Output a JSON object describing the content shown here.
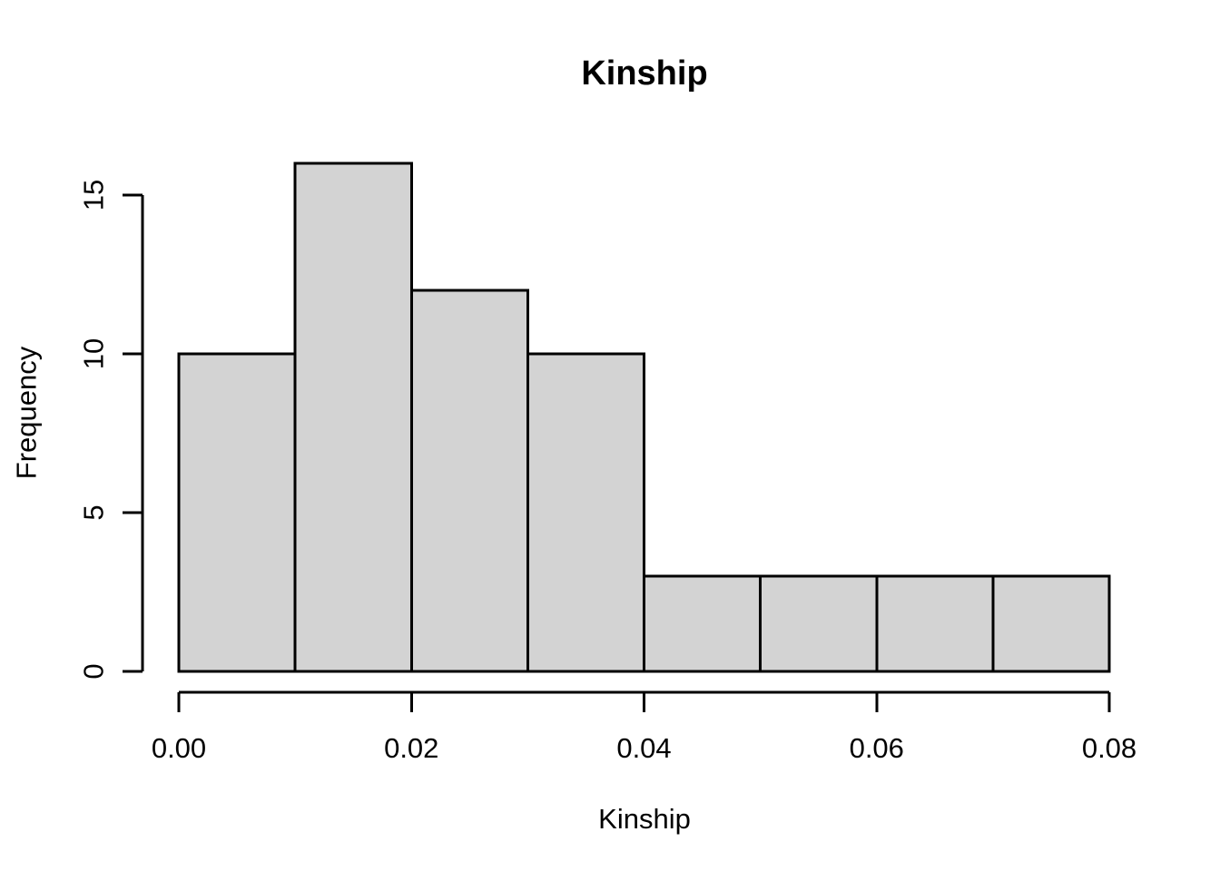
{
  "chart_data": {
    "type": "bar",
    "subtype": "histogram",
    "title": "Kinship",
    "xlabel": "Kinship",
    "ylabel": "Frequency",
    "bin_edges": [
      0.0,
      0.01,
      0.02,
      0.03,
      0.04,
      0.05,
      0.06,
      0.07,
      0.08
    ],
    "counts": [
      10,
      16,
      12,
      10,
      3,
      3,
      3,
      3
    ],
    "xlim": [
      0.0,
      0.08
    ],
    "ylim": [
      0,
      16
    ],
    "x_tick_values": [
      0.0,
      0.02,
      0.04,
      0.06,
      0.08
    ],
    "x_tick_labels": [
      "0.00",
      "0.02",
      "0.04",
      "0.06",
      "0.08"
    ],
    "y_tick_values": [
      0,
      5,
      10,
      15
    ],
    "y_tick_labels": [
      "0",
      "5",
      "10",
      "15"
    ],
    "grid": false,
    "legend_position": "none",
    "bar_fill_color": "#d3d3d3",
    "bar_border_color": "#000000",
    "axis_color": "#000000",
    "text_color": "#000000",
    "background_color": "#ffffff"
  }
}
